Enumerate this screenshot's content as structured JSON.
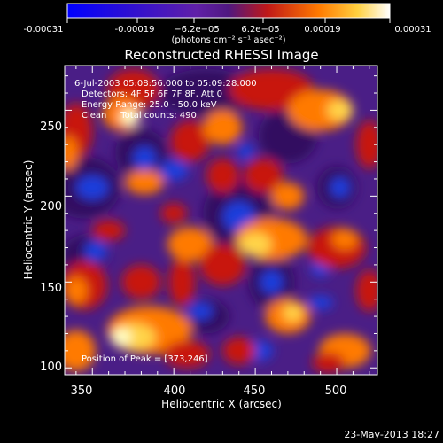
{
  "colorbar": {
    "ticks": [
      "-0.00031",
      "-0.00019",
      "−6.2e−05",
      "6.2e−05",
      "0.00019",
      "0.00031"
    ],
    "units_line": "(photons cm⁻² s⁻¹ asec⁻²)",
    "colors": [
      "#0000ff",
      "#3010d0",
      "#5020a0",
      "#9030b0",
      "#d02010",
      "#ff8000",
      "#ffff80",
      "#ffffff"
    ]
  },
  "chart_data": {
    "type": "heatmap",
    "title": "Reconstructed RHESSI Image",
    "xlabel": "Heliocentric X (arcsec)",
    "ylabel": "Heliocentric Y (arcsec)",
    "xlim": [
      333,
      525
    ],
    "ylim": [
      96,
      276
    ],
    "xticks": [
      350,
      400,
      450,
      500
    ],
    "yticks": [
      100,
      150,
      200,
      250
    ],
    "annotations": {
      "time_range": "6-Jul-2003 05:08:56.000 to 05:09:28.000",
      "detectors": "Detectors: 4F 5F 6F 7F 8F, Att 0",
      "energy": "Energy Range: 25.0 - 50.0 keV",
      "clean": "Clean     Total counts: 490.",
      "peak": "Position of Peak = [373,246]"
    },
    "peak_position": [
      373,
      246
    ],
    "value_range": [
      -0.00031,
      0.00031
    ]
  },
  "footer": {
    "timestamp": "23-May-2013 18:27"
  }
}
